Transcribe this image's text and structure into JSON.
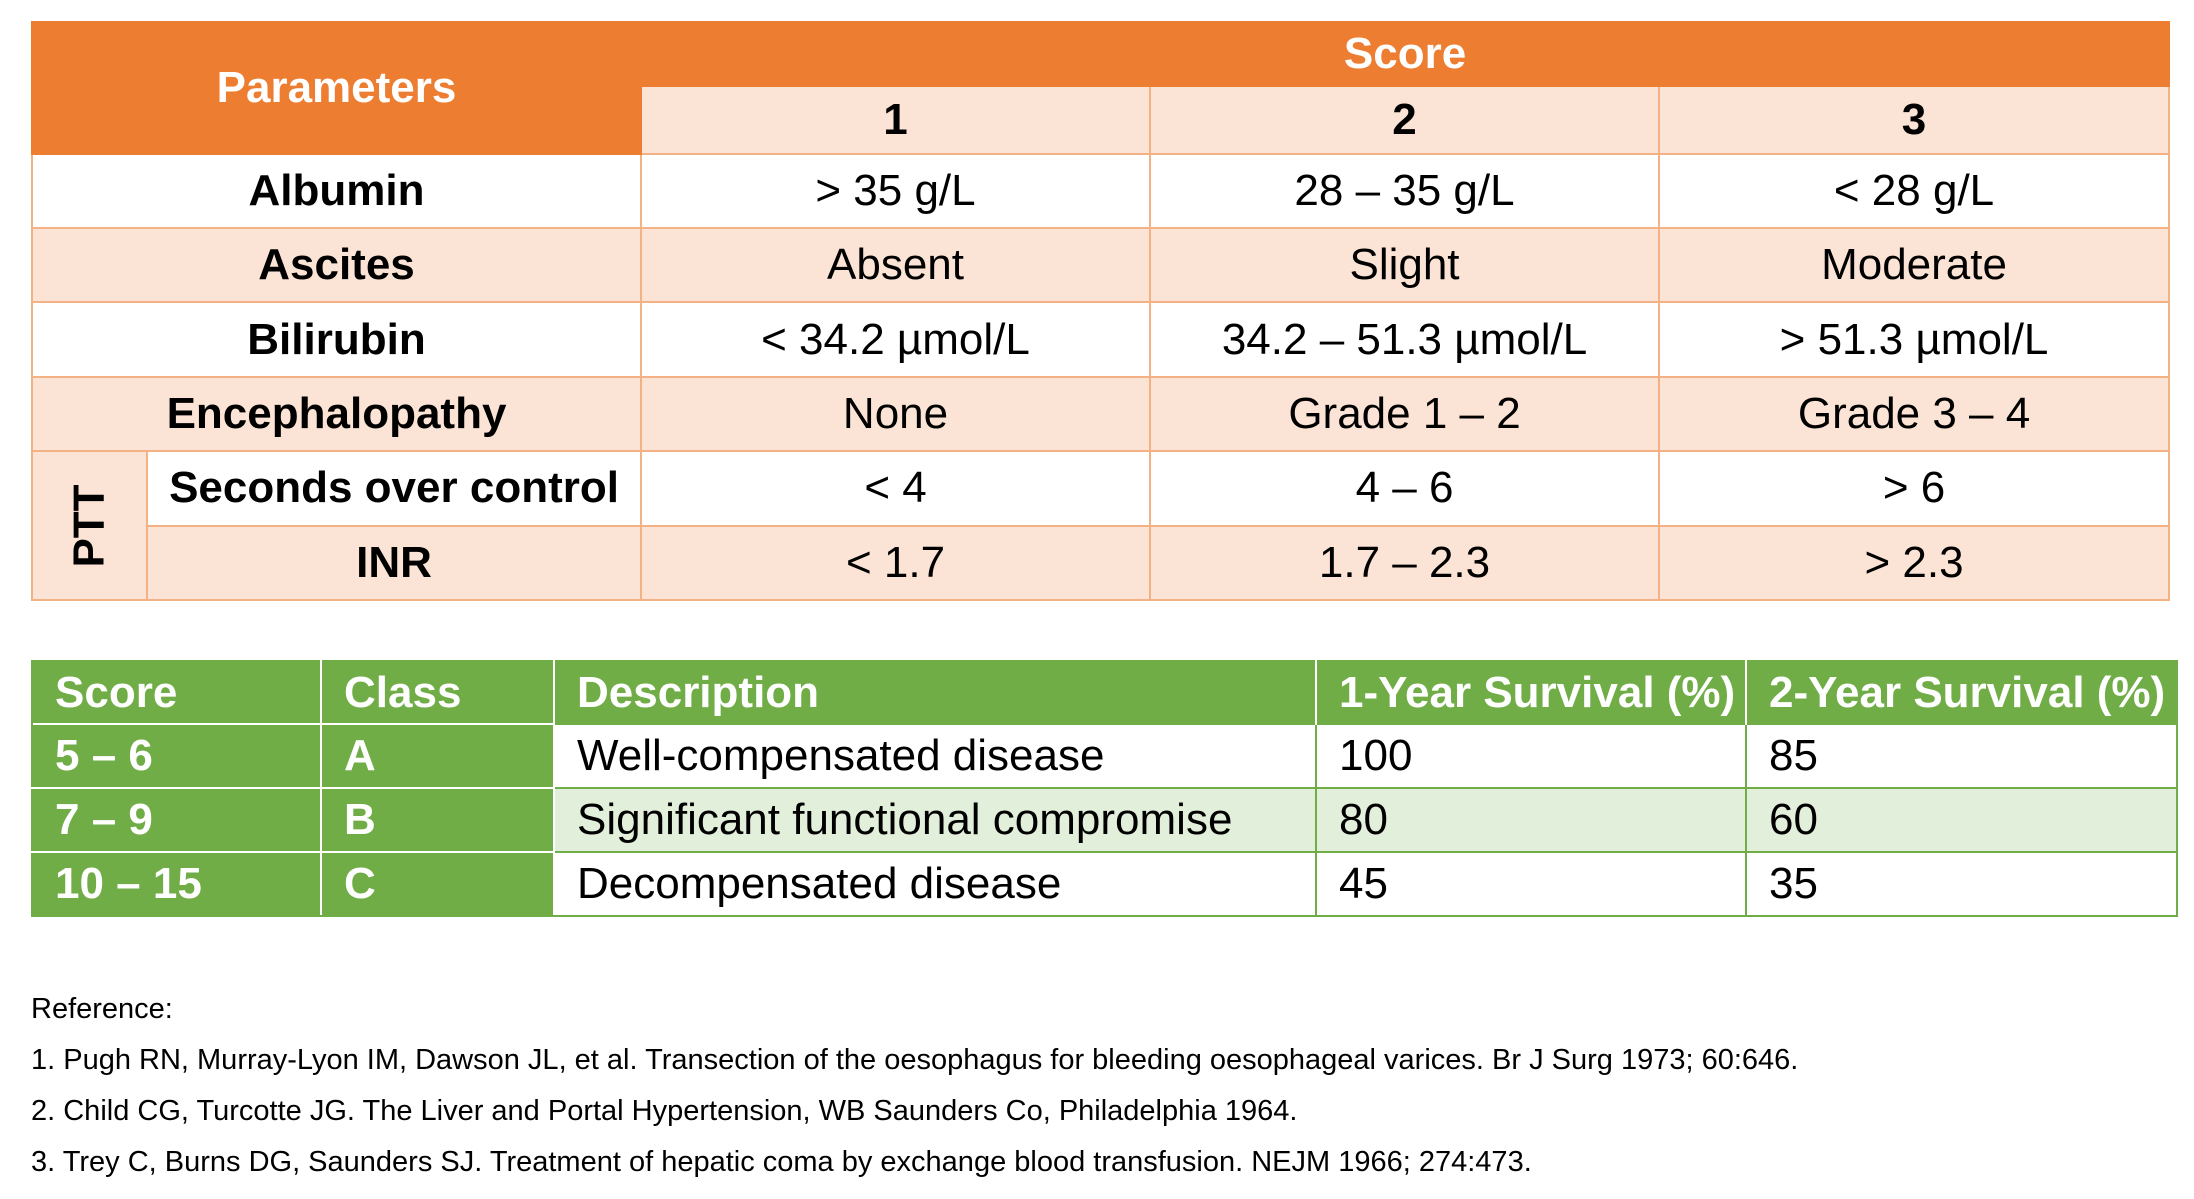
{
  "score_table": {
    "parameters_header": "Parameters",
    "score_header": "Score",
    "score_columns": [
      "1",
      "2",
      "3"
    ],
    "rows": [
      {
        "label": "Albumin",
        "values": [
          "> 35 g/L",
          "28 – 35 g/L",
          "< 28 g/L"
        ]
      },
      {
        "label": "Ascites",
        "values": [
          "Absent",
          "Slight",
          "Moderate"
        ]
      },
      {
        "label": "Bilirubin",
        "values": [
          "< 34.2 µmol/L",
          "34.2 – 51.3 µmol/L",
          "> 51.3 µmol/L"
        ]
      },
      {
        "label": "Encephalopathy",
        "values": [
          "None",
          "Grade 1 – 2",
          "Grade 3 – 4"
        ]
      }
    ],
    "ptt_group": {
      "label": "PTT",
      "rows": [
        {
          "label": "Seconds over control",
          "values": [
            "< 4",
            "4 – 6",
            "> 6"
          ]
        },
        {
          "label": "INR",
          "values": [
            "< 1.7",
            "1.7 – 2.3",
            "> 2.3"
          ]
        }
      ]
    },
    "colors": {
      "header": "#ED7D31",
      "shade": "#FBE4D5",
      "border": "#F4B183"
    }
  },
  "class_table": {
    "headers": [
      "Score",
      "Class",
      "Description",
      "1-Year Survival (%)",
      "2-Year Survival (%)"
    ],
    "rows": [
      {
        "score": "5 – 6",
        "class": "A",
        "description": "Well-compensated disease",
        "survival_1yr": "100",
        "survival_2yr": "85"
      },
      {
        "score": "7 – 9",
        "class": "B",
        "description": "Significant functional compromise",
        "survival_1yr": "80",
        "survival_2yr": "60"
      },
      {
        "score": "10 – 15",
        "class": "C",
        "description": "Decompensated disease",
        "survival_1yr": "45",
        "survival_2yr": "35"
      }
    ],
    "colors": {
      "header": "#70AD47",
      "shade": "#E2EFDA"
    }
  },
  "references": {
    "title": "Reference:",
    "items": [
      "1.  Pugh RN, Murray-Lyon IM, Dawson JL, et al. Transection of the oesophagus for bleeding oesophageal varices. Br J Surg 1973; 60:646.",
      "2.  Child CG, Turcotte JG. The Liver and Portal Hypertension, WB Saunders Co, Philadelphia 1964.",
      "3.  Trey C, Burns DG, Saunders SJ. Treatment of hepatic coma by exchange blood transfusion. NEJM 1966; 274:473."
    ]
  }
}
